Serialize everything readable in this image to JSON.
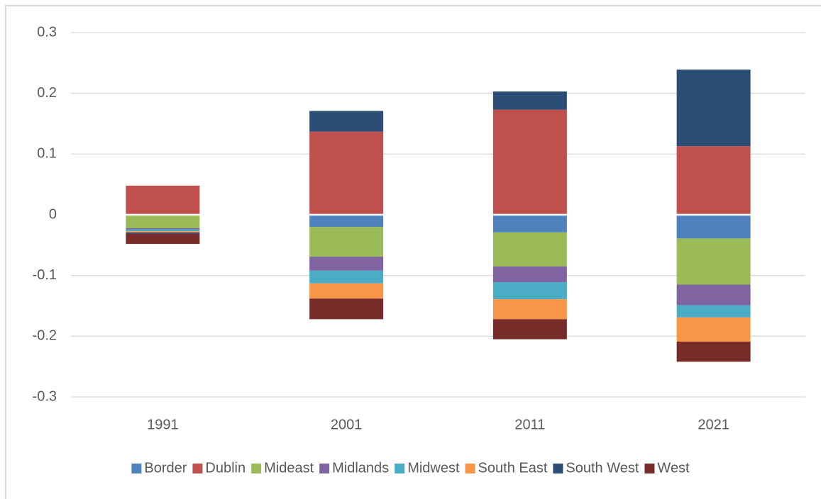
{
  "chart_data": {
    "type": "bar",
    "stacked": true,
    "categories": [
      "1991",
      "2001",
      "2011",
      "2021"
    ],
    "series": [
      {
        "name": "Border",
        "color": "#4f81bd",
        "values": [
          -0.001,
          -0.02,
          -0.029,
          -0.039
        ]
      },
      {
        "name": "Dublin",
        "color": "#c0504d",
        "values": [
          0.048,
          0.137,
          0.173,
          0.113
        ]
      },
      {
        "name": "Mideast",
        "color": "#9bbb59",
        "values": [
          -0.021,
          -0.049,
          -0.056,
          -0.076
        ]
      },
      {
        "name": "Midlands",
        "color": "#8064a2",
        "values": [
          -0.002,
          -0.023,
          -0.026,
          -0.034
        ]
      },
      {
        "name": "Midwest",
        "color": "#4bacc6",
        "values": [
          -0.003,
          -0.021,
          -0.028,
          -0.02
        ]
      },
      {
        "name": "South East",
        "color": "#f79646",
        "values": [
          -0.002,
          -0.025,
          -0.033,
          -0.04
        ]
      },
      {
        "name": "South West",
        "color": "#2c4d75",
        "values": [
          -0.002,
          0.034,
          0.03,
          0.126
        ]
      },
      {
        "name": "West",
        "color": "#772c2a",
        "values": [
          -0.017,
          -0.034,
          -0.033,
          -0.033
        ]
      }
    ],
    "ylim": [
      -0.3,
      0.3
    ],
    "yticks": [
      -0.3,
      -0.2,
      -0.1,
      0,
      0.1,
      0.2,
      0.3
    ],
    "grid": true,
    "legend": "bottom"
  }
}
